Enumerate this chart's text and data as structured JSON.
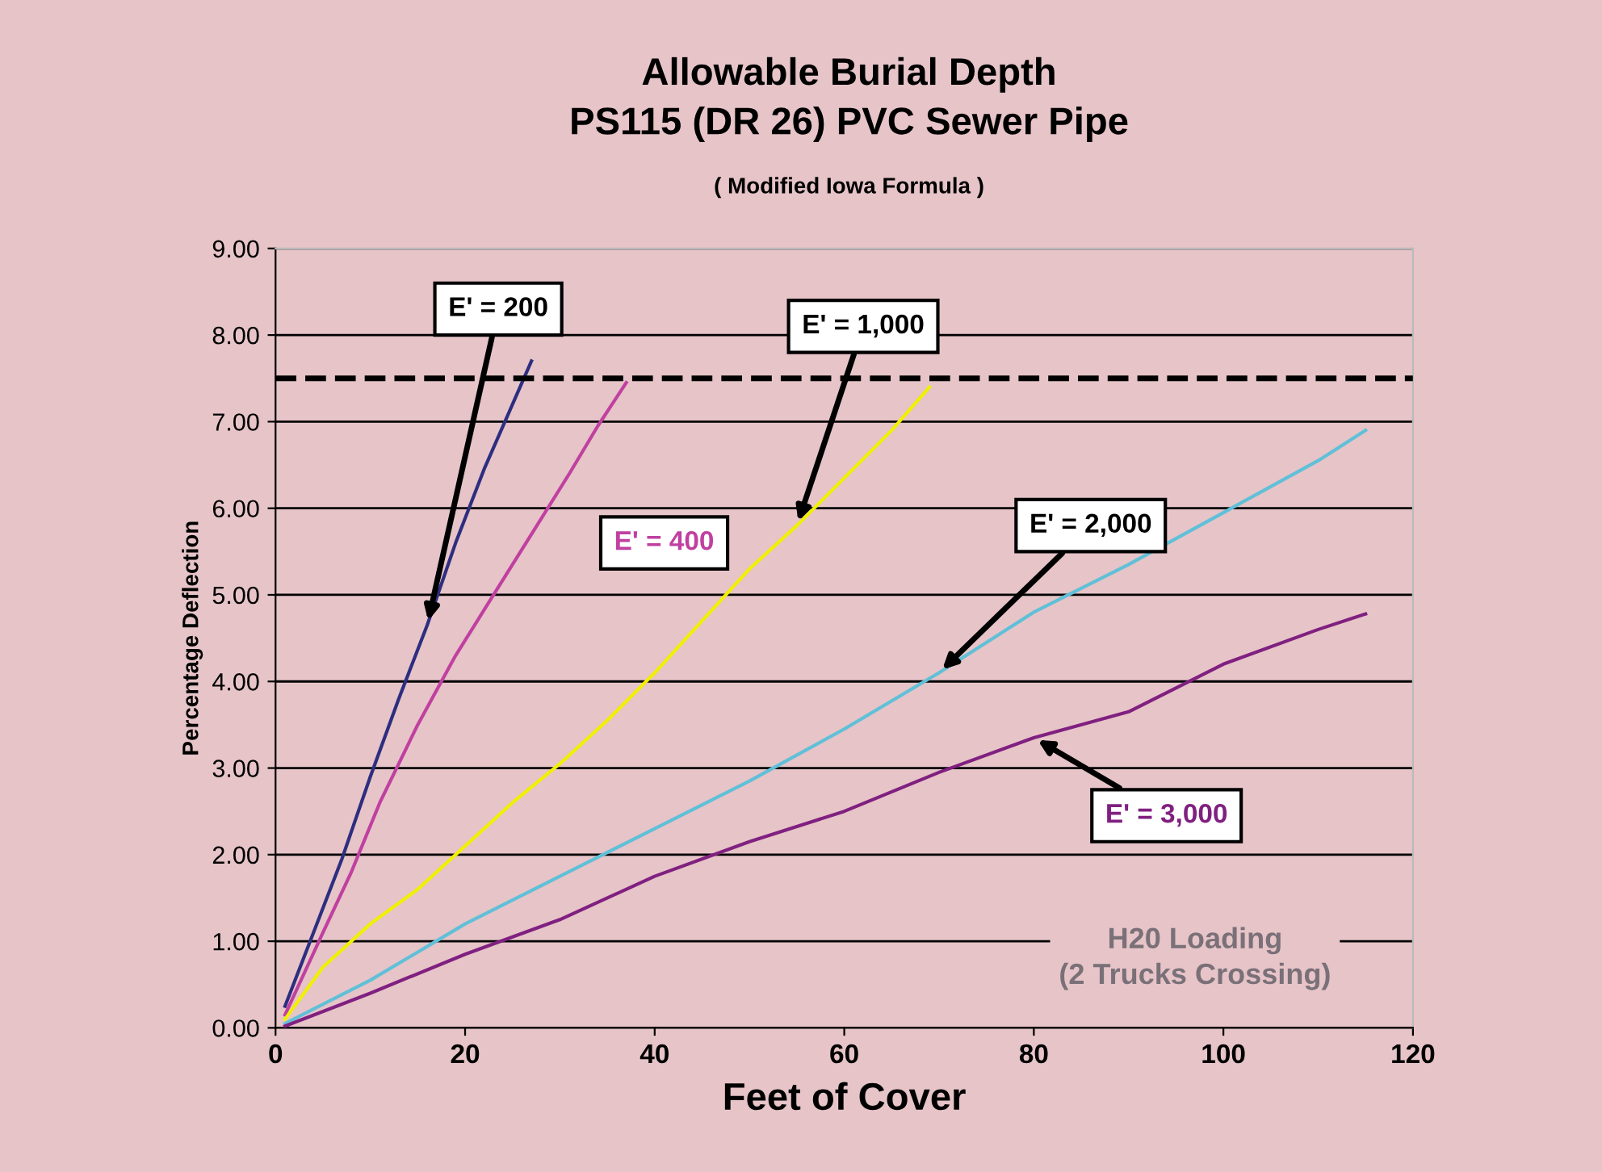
{
  "chart_data": {
    "type": "line",
    "title": "Allowable Burial Depth\nPS115 (DR 26) PVC Sewer Pipe",
    "subtitle": "( Modified Iowa Formula )",
    "xlabel": "Feet of Cover",
    "ylabel": "Percentage Deflection",
    "xlim": [
      0,
      120
    ],
    "xticks": [
      0,
      20,
      40,
      60,
      80,
      100,
      120
    ],
    "ylim": [
      0,
      9
    ],
    "yticks": [
      {
        "value": 0,
        "label": "0.00"
      },
      {
        "value": 1,
        "label": "1.00"
      },
      {
        "value": 2,
        "label": "2.00"
      },
      {
        "value": 3,
        "label": "3.00"
      },
      {
        "value": 4,
        "label": "4.00"
      },
      {
        "value": 5,
        "label": "5.00"
      },
      {
        "value": 6,
        "label": "6.00"
      },
      {
        "value": 7,
        "label": "7.00"
      },
      {
        "value": 8,
        "label": "8.00"
      },
      {
        "value": 9,
        "label": "9.00"
      }
    ],
    "grid": "y",
    "legend": false,
    "marker": "none",
    "line_style": "solid",
    "series": [
      {
        "name": "E' = 200",
        "color": "#2e2e80",
        "x": [
          1,
          4,
          7,
          10,
          13,
          16,
          19,
          22,
          25,
          27
        ],
        "values": [
          0.25,
          1.1,
          1.95,
          2.9,
          3.8,
          4.65,
          5.6,
          6.45,
          7.2,
          7.7
        ]
      },
      {
        "name": "E' = 400",
        "color": "#c040a0",
        "x": [
          1,
          5,
          8,
          11,
          15,
          19,
          23,
          27,
          31,
          34,
          37
        ],
        "values": [
          0.15,
          1.1,
          1.8,
          2.6,
          3.5,
          4.3,
          5.0,
          5.7,
          6.4,
          6.95,
          7.45
        ]
      },
      {
        "name": "E' = 1,000",
        "color": "#f0f000",
        "x": [
          1,
          5,
          10,
          15,
          20,
          25,
          30,
          35,
          40,
          45,
          50,
          55,
          60,
          65,
          69
        ],
        "values": [
          0.1,
          0.7,
          1.2,
          1.6,
          2.1,
          2.6,
          3.05,
          3.55,
          4.1,
          4.7,
          5.3,
          5.8,
          6.35,
          6.9,
          7.4
        ]
      },
      {
        "name": "E' = 2,000",
        "color": "#60c0d8",
        "x": [
          1,
          10,
          20,
          30,
          40,
          50,
          60,
          70,
          80,
          90,
          100,
          110,
          115
        ],
        "values": [
          0.05,
          0.55,
          1.2,
          1.75,
          2.3,
          2.85,
          3.45,
          4.1,
          4.8,
          5.35,
          5.95,
          6.55,
          6.9
        ]
      },
      {
        "name": "E' = 3,000",
        "color": "#802080",
        "x": [
          1,
          10,
          20,
          30,
          40,
          50,
          60,
          70,
          80,
          90,
          100,
          110,
          115
        ],
        "values": [
          0.02,
          0.4,
          0.85,
          1.25,
          1.75,
          2.15,
          2.5,
          2.95,
          3.35,
          3.65,
          4.2,
          4.6,
          4.78
        ]
      }
    ],
    "ref_lines": [
      {
        "axis": "y",
        "value": 7.5,
        "color": "#000000",
        "line_style": "dashed"
      }
    ],
    "annotations": [
      "H20 Loading\n(2 Trucks Crossing)"
    ]
  }
}
